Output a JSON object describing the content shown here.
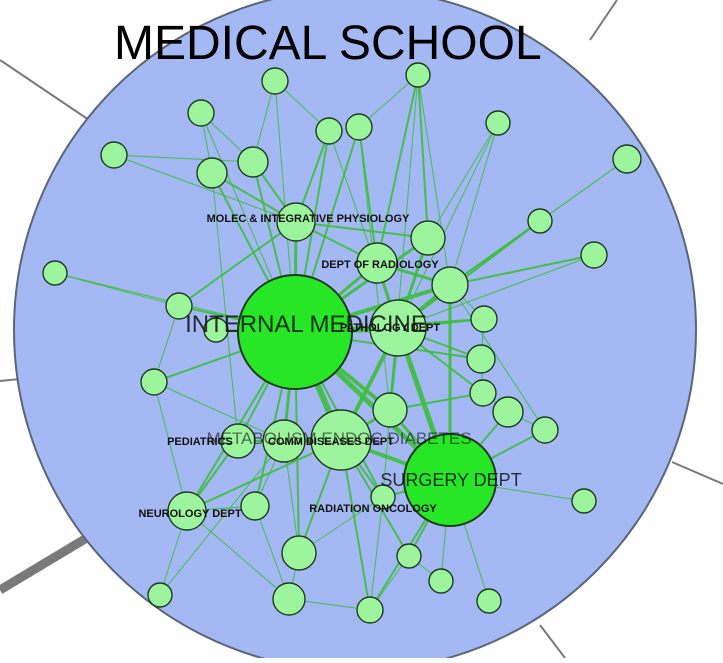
{
  "diagram": {
    "title": "MEDICAL SCHOOL",
    "colors": {
      "background": "#ffffff",
      "cluster_fill": "#a4b8f3",
      "cluster_stroke": "#5a6678",
      "node_fill": "#9cf49c",
      "node_fill_large": "#26e626",
      "node_stroke": "#1e3a1e",
      "edge": "#3cbf3c",
      "external_edge": "#7a7a7a"
    },
    "labels": {
      "internal_medicine": "INTERNAL MEDICINE",
      "surgery": "SURGERY DEPT",
      "metabolism": "METABOLISM ENDOC DIABETES",
      "molec": "MOLEC & INTEGRATIVE PHYSIOLOGY",
      "radiology": "DEPT OF RADIOLOGY",
      "pathology": "PATHOLOGY DEPT",
      "pediatrics": "PEDIATRICS",
      "comm_diseases": "COMM DISEASES DEPT",
      "neurology": "NEUROLOGY DEPT",
      "radiation_oncology": "RADIATION ONCOLOGY"
    }
  }
}
